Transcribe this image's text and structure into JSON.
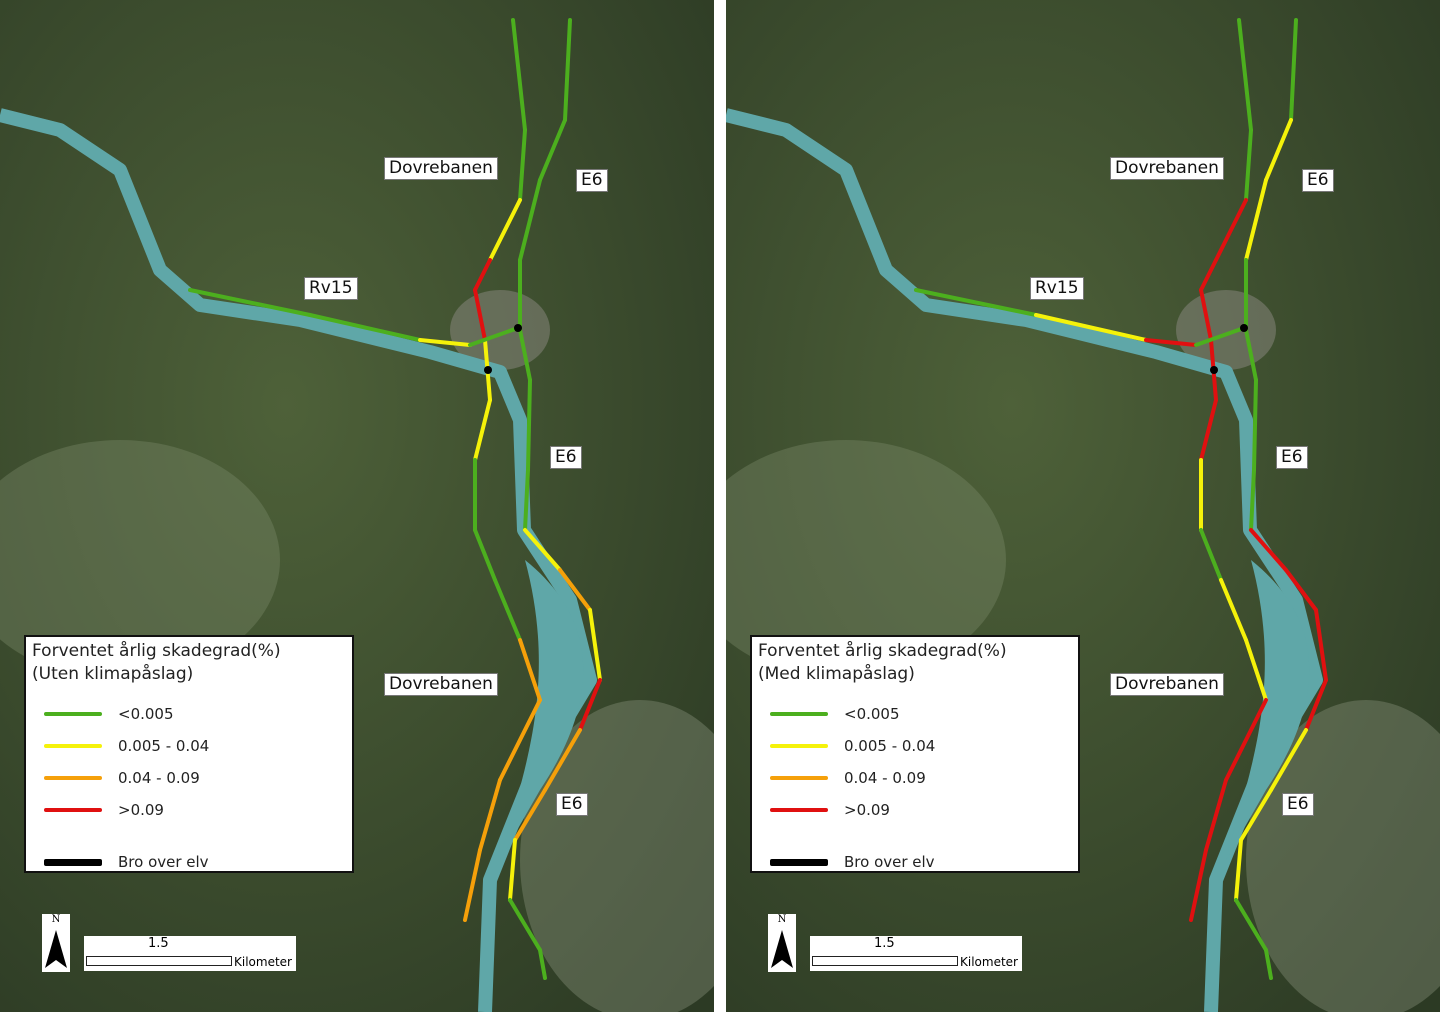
{
  "colors": {
    "green": "#4caf1e",
    "yellow": "#f5f20a",
    "orange": "#f5a00a",
    "red": "#e01010",
    "bridge": "#000000",
    "river": "#5fa7a8"
  },
  "panels": [
    {
      "legend_title": "Forventet årlig skadegrad(%)",
      "legend_subtitle": "(Uten klimapåslag)",
      "roads": {
        "dovrebanen": [
          "green",
          "green",
          "yellow",
          "red",
          "red",
          "yellow",
          "yellow",
          "green",
          "green",
          "green",
          "orange",
          "orange",
          "orange",
          "orange"
        ],
        "e6": [
          "green",
          "green",
          "green",
          "green",
          "green",
          "green",
          "green",
          "yellow",
          "orange",
          "yellow",
          "red",
          "orange",
          "orange",
          "yellow",
          "green",
          "green"
        ],
        "rv15": [
          "green",
          "green",
          "yellow",
          "green"
        ]
      }
    },
    {
      "legend_title": "Forventet årlig skadegrad(%)",
      "legend_subtitle": "(Med klimapåslag)",
      "roads": {
        "dovrebanen": [
          "green",
          "green",
          "red",
          "red",
          "red",
          "red",
          "red",
          "yellow",
          "green",
          "yellow",
          "yellow",
          "red",
          "red",
          "red"
        ],
        "e6": [
          "green",
          "yellow",
          "yellow",
          "green",
          "green",
          "green",
          "green",
          "red",
          "red",
          "red",
          "red",
          "yellow",
          "yellow",
          "yellow",
          "green",
          "green"
        ],
        "rv15": [
          "green",
          "yellow",
          "red",
          "green"
        ]
      }
    }
  ],
  "labels": {
    "dovrebanen": "Dovrebanen",
    "e6": "E6",
    "rv15": "Rv15"
  },
  "legend_items": [
    {
      "label": "<0.005",
      "color": "green"
    },
    {
      "label": "0.005 - 0.04",
      "color": "yellow"
    },
    {
      "label": "0.04 - 0.09",
      "color": "orange"
    },
    {
      "label": ">0.09",
      "color": "red"
    },
    {
      "label": "Bro over elv",
      "color": "bridge"
    }
  ],
  "north": "N",
  "scale": {
    "value": "1.5",
    "unit": "Kilometer"
  }
}
